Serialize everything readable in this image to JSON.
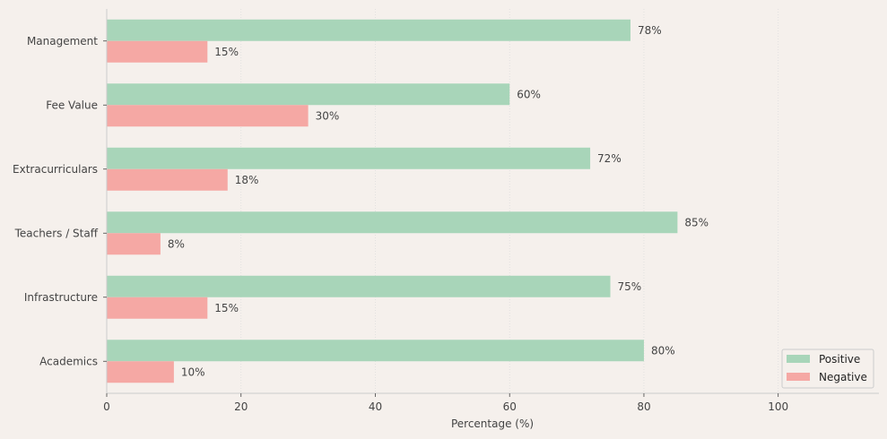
{
  "chart_data": {
    "type": "bar",
    "orientation": "horizontal",
    "categories": [
      "Management",
      "Fee Value",
      "Extracurriculars",
      "Teachers / Staff",
      "Infrastructure",
      "Academics"
    ],
    "series": [
      {
        "name": "Positive",
        "values": [
          78,
          60,
          72,
          85,
          75,
          80
        ],
        "color": "#a8d5b9"
      },
      {
        "name": "Negative",
        "values": [
          15,
          30,
          18,
          8,
          15,
          10
        ],
        "color": "#f5a8a4"
      }
    ],
    "data_labels": {
      "Positive": [
        "78%",
        "60%",
        "72%",
        "85%",
        "75%",
        "80%"
      ],
      "Negative": [
        "15%",
        "30%",
        "18%",
        "8%",
        "15%",
        "10%"
      ]
    },
    "xlabel": "Percentage (%)",
    "ylabel": "",
    "xlim": [
      0,
      115
    ],
    "xticks": [
      0,
      20,
      40,
      60,
      80,
      100
    ],
    "xtick_labels": [
      "0",
      "20",
      "40",
      "60",
      "80",
      "100"
    ],
    "grid": true,
    "legend_position": "bottom-right"
  },
  "colors": {
    "background": "#f5f0ec",
    "axis": "#cccccc",
    "grid": "#dddddd",
    "text": "#444444"
  }
}
